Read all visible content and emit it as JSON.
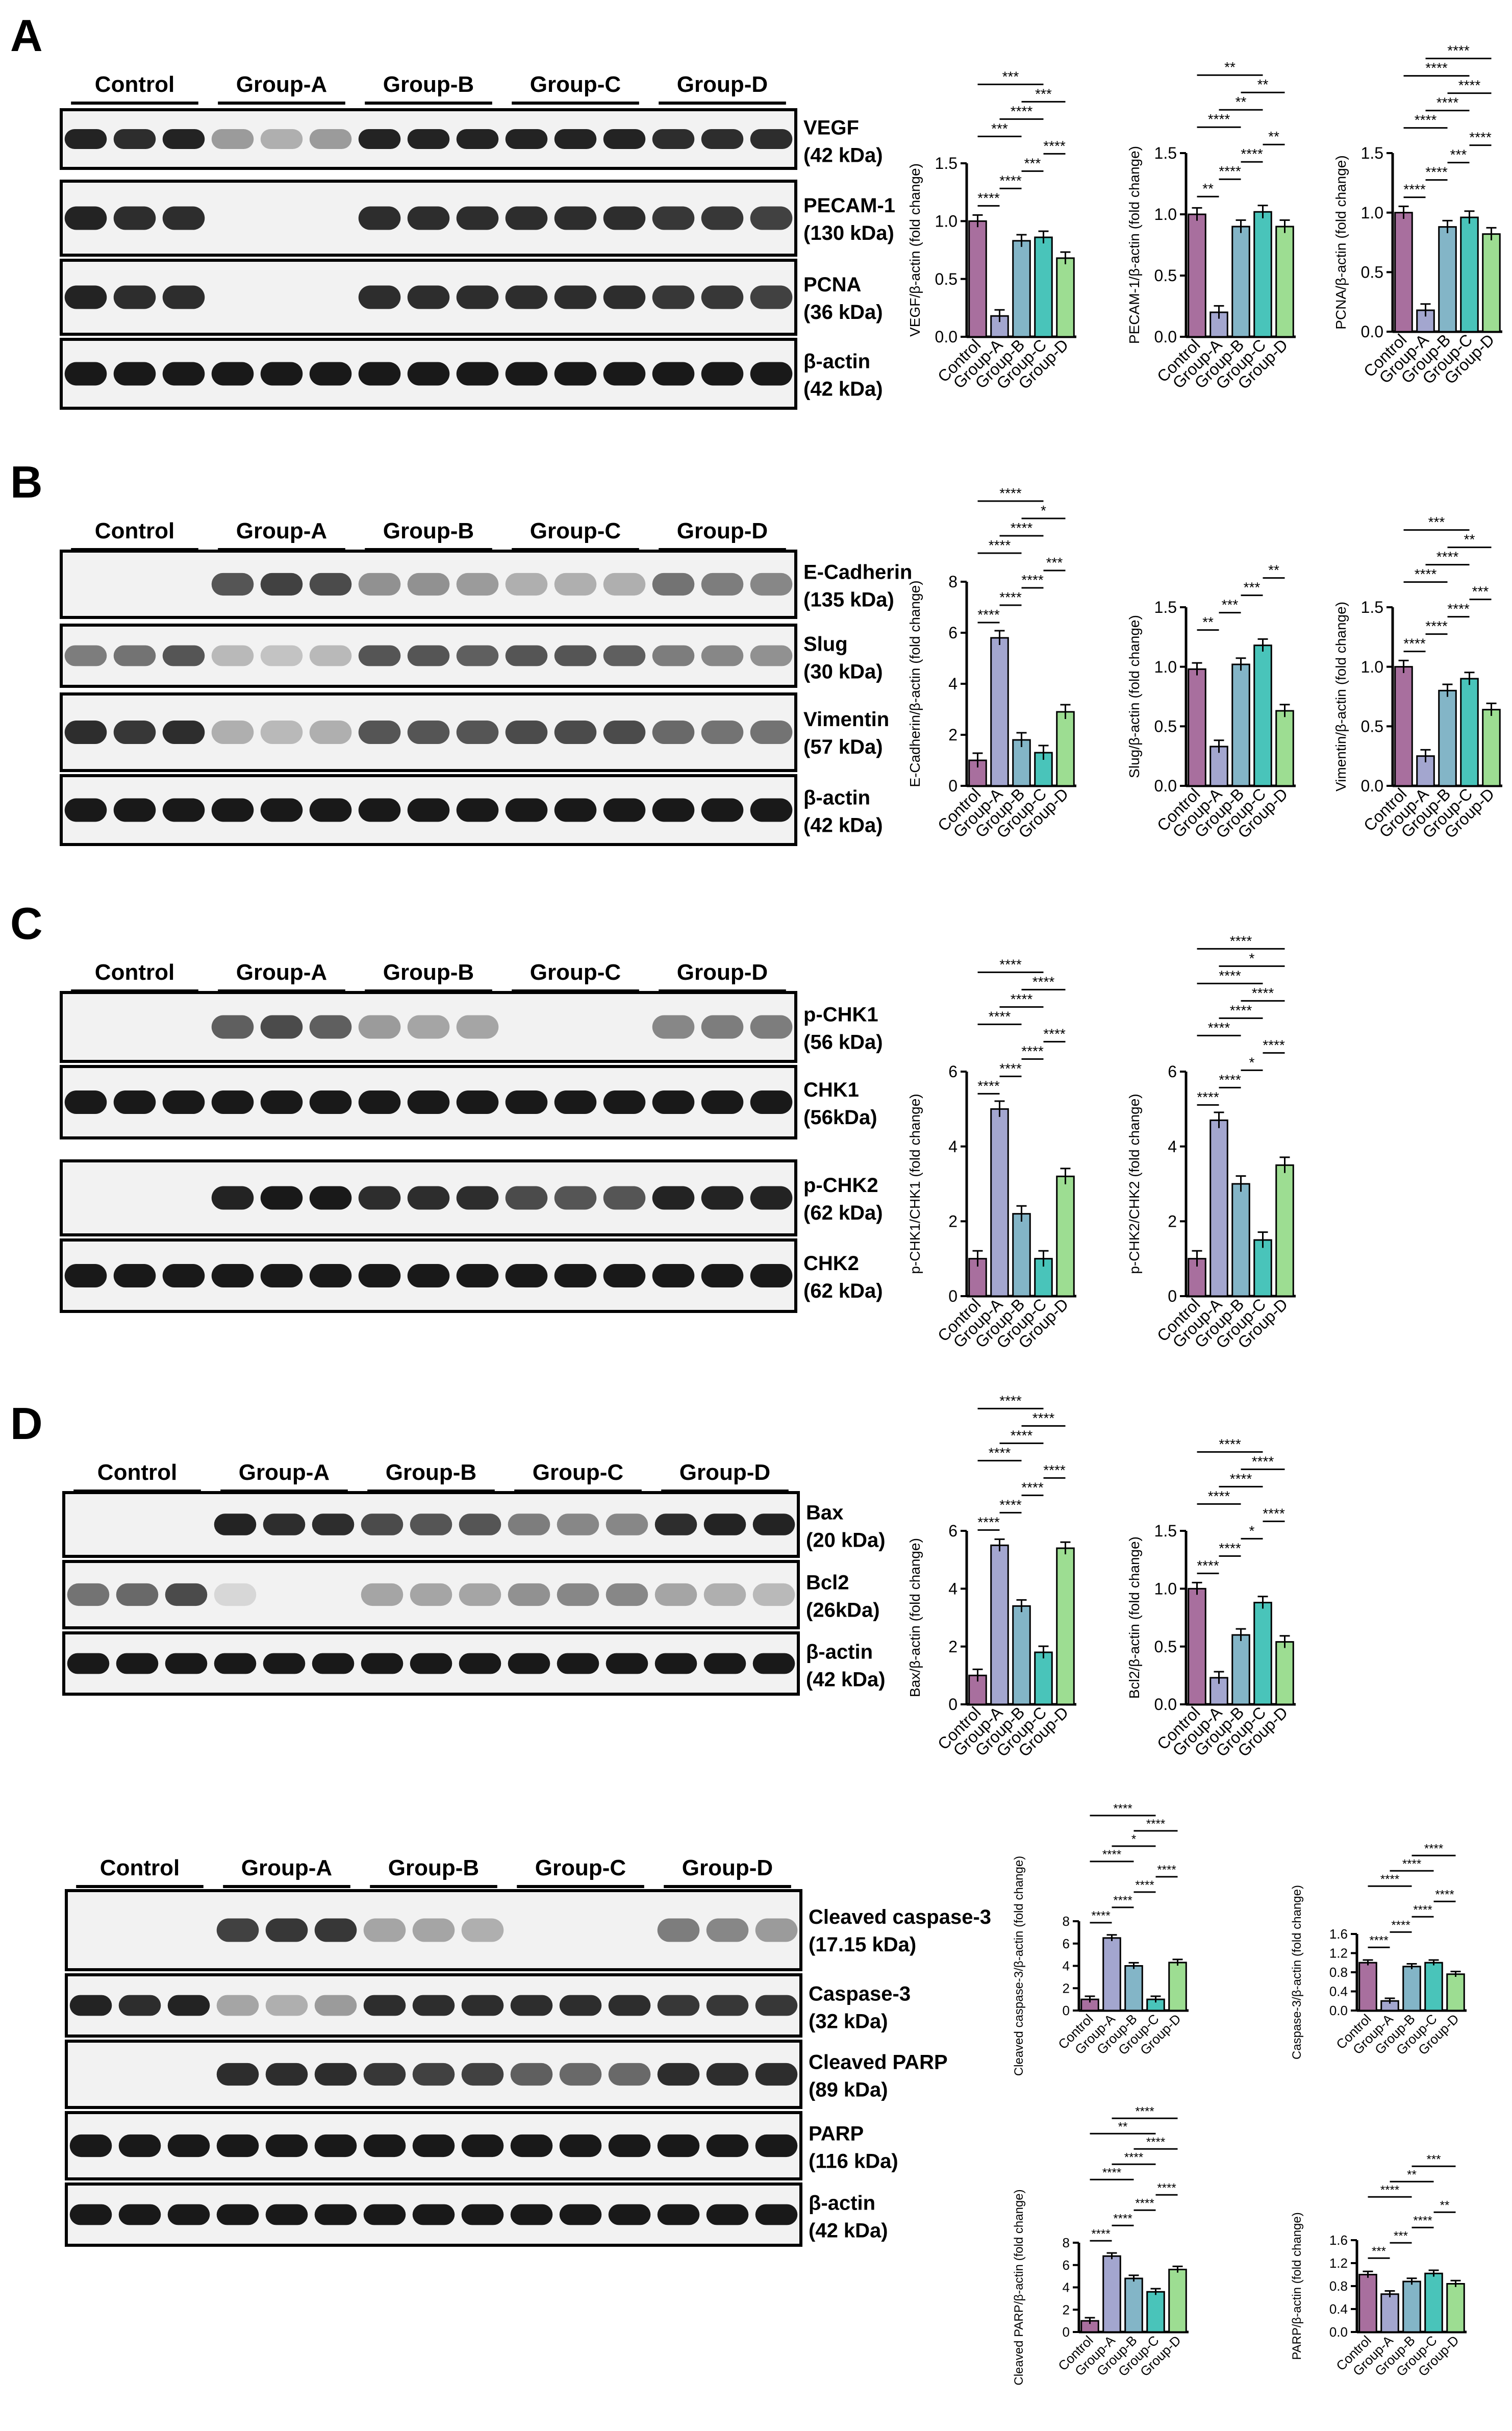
{
  "groups": [
    "Control",
    "Group-A",
    "Group-B",
    "Group-C",
    "Group-D"
  ],
  "colors": {
    "Control": "#a86f9e",
    "Group-A": "#a3a6cf",
    "Group-B": "#83b5c7",
    "Group-C": "#49c4ba",
    "Group-D": "#9ddd92"
  },
  "panels": [
    {
      "letter": "A",
      "blots": [
        {
          "protein": "VEGF",
          "kda": "(42 kDa)",
          "pattern": "vegf"
        },
        {
          "protein": "PECAM-1",
          "kda": "(130 kDa)",
          "pattern": "pecam"
        },
        {
          "protein": "PCNA",
          "kda": "(36 kDa)",
          "pattern": "pecam"
        },
        {
          "protein": "β-actin",
          "kda": "(42 kDa)",
          "pattern": "even"
        }
      ]
    },
    {
      "letter": "B",
      "blots": [
        {
          "protein": "E-Cadherin",
          "kda": "(135 kDa)",
          "pattern": "ecad"
        },
        {
          "protein": "Slug",
          "kda": "(30 kDa)",
          "pattern": "slug"
        },
        {
          "protein": "Vimentin",
          "kda": "(57 kDa)",
          "pattern": "vim"
        },
        {
          "protein": "β-actin",
          "kda": "(42 kDa)",
          "pattern": "even"
        }
      ]
    },
    {
      "letter": "C",
      "blots": [
        {
          "protein": "p-CHK1",
          "kda": "(56 kDa)",
          "pattern": "pchk1"
        },
        {
          "protein": "CHK1",
          "kda": "(56kDa)",
          "pattern": "even"
        },
        {
          "protein": "p-CHK2",
          "kda": "(62 kDa)",
          "pattern": "pchk2"
        },
        {
          "protein": "CHK2",
          "kda": "(62 kDa)",
          "pattern": "even"
        }
      ]
    },
    {
      "letter": "D",
      "blots": [
        {
          "protein": "Bax",
          "kda": "(20 kDa)",
          "pattern": "bax"
        },
        {
          "protein": "Bcl2",
          "kda": "(26kDa)",
          "pattern": "bcl2"
        },
        {
          "protein": "β-actin",
          "kda": "(42 kDa)",
          "pattern": "even"
        }
      ]
    },
    {
      "letter": "",
      "blots": [
        {
          "protein": "Cleaved caspase-3",
          "kda": "(17.15 kDa)",
          "pattern": "ccasp"
        },
        {
          "protein": "Caspase-3",
          "kda": "(32 kDa)",
          "pattern": "casp"
        },
        {
          "protein": "Cleaved PARP",
          "kda": "(89 kDa)",
          "pattern": "cparp"
        },
        {
          "protein": "PARP",
          "kda": "(116 kDa)",
          "pattern": "even"
        },
        {
          "protein": "β-actin",
          "kda": "(42 kDa)",
          "pattern": "even"
        }
      ]
    }
  ],
  "chart_data": [
    {
      "type": "bar",
      "ylabel": "VEGF/β-actin (fold change)",
      "ylim": [
        0,
        1.5
      ],
      "yticks": [
        "0.0",
        "0.5",
        "1.0",
        "1.5"
      ],
      "categories": [
        "Control",
        "Group-A",
        "Group-B",
        "Group-C",
        "Group-D"
      ],
      "values": [
        1.0,
        0.18,
        0.83,
        0.86,
        0.68
      ],
      "sig": [
        "****",
        "****",
        "***",
        "****",
        "***",
        "****",
        "***",
        "***"
      ]
    },
    {
      "type": "bar",
      "ylabel": "PECAM-1/β-actin (fold change)",
      "ylim": [
        0,
        1.5
      ],
      "yticks": [
        "0.0",
        "0.5",
        "1.0",
        "1.5"
      ],
      "categories": [
        "Control",
        "Group-A",
        "Group-B",
        "Group-C",
        "Group-D"
      ],
      "values": [
        1.0,
        0.2,
        0.9,
        1.02,
        0.9
      ],
      "sig": [
        "**",
        "****",
        "****",
        "**",
        "****",
        "**",
        "**",
        "**"
      ]
    },
    {
      "type": "bar",
      "ylabel": "PCNA/β-actin (fold change)",
      "ylim": [
        0,
        1.5
      ],
      "yticks": [
        "0.0",
        "0.5",
        "1.0",
        "1.5"
      ],
      "categories": [
        "Control",
        "Group-A",
        "Group-B",
        "Group-C",
        "Group-D"
      ],
      "values": [
        1.0,
        0.18,
        0.88,
        0.96,
        0.82
      ],
      "sig": [
        "****",
        "****",
        "***",
        "****",
        "****",
        "****",
        "****",
        "****",
        "****"
      ]
    },
    {
      "type": "bar",
      "ylabel": "E-Cadherin/β-actin (fold change)",
      "ylim": [
        0,
        8
      ],
      "yticks": [
        "0",
        "2",
        "4",
        "6",
        "8"
      ],
      "categories": [
        "Control",
        "Group-A",
        "Group-B",
        "Group-C",
        "Group-D"
      ],
      "values": [
        1.0,
        5.8,
        1.8,
        1.3,
        2.9
      ],
      "sig": [
        "****",
        "****",
        "****",
        "***",
        "****",
        "****",
        "*",
        "****"
      ]
    },
    {
      "type": "bar",
      "ylabel": "Slug/β-actin (fold change)",
      "ylim": [
        0,
        1.5
      ],
      "yticks": [
        "0.0",
        "0.5",
        "1.0",
        "1.5"
      ],
      "categories": [
        "Control",
        "Group-A",
        "Group-B",
        "Group-C",
        "Group-D"
      ],
      "values": [
        0.98,
        0.33,
        1.02,
        1.18,
        0.63
      ],
      "sig": [
        "**",
        "***",
        "***",
        "**"
      ]
    },
    {
      "type": "bar",
      "ylabel": "Vimentin/β-actin (fold change)",
      "ylim": [
        0,
        1.5
      ],
      "yticks": [
        "0.0",
        "0.5",
        "1.0",
        "1.5"
      ],
      "categories": [
        "Control",
        "Group-A",
        "Group-B",
        "Group-C",
        "Group-D"
      ],
      "values": [
        1.0,
        0.25,
        0.8,
        0.9,
        0.64
      ],
      "sig": [
        "****",
        "****",
        "****",
        "***",
        "****",
        "****",
        "**",
        "***"
      ]
    },
    {
      "type": "bar",
      "ylabel": "p-CHK1/CHK1 (fold change)",
      "ylim": [
        0,
        6
      ],
      "yticks": [
        "0",
        "2",
        "4",
        "6"
      ],
      "categories": [
        "Control",
        "Group-A",
        "Group-B",
        "Group-C",
        "Group-D"
      ],
      "values": [
        1.0,
        5.0,
        2.2,
        1.0,
        3.2
      ],
      "sig": [
        "****",
        "****",
        "****",
        "****",
        "****",
        "****",
        "****",
        "****"
      ]
    },
    {
      "type": "bar",
      "ylabel": "p-CHK2/CHK2 (fold change)",
      "ylim": [
        0,
        6
      ],
      "yticks": [
        "0",
        "2",
        "4",
        "6"
      ],
      "categories": [
        "Control",
        "Group-A",
        "Group-B",
        "Group-C",
        "Group-D"
      ],
      "values": [
        1.0,
        4.7,
        3.0,
        1.5,
        3.5
      ],
      "sig": [
        "****",
        "****",
        "*",
        "****",
        "****",
        "****",
        "****",
        "****",
        "*",
        "****"
      ]
    },
    {
      "type": "bar",
      "ylabel": "Bax/β-actin (fold change)",
      "ylim": [
        0,
        6
      ],
      "yticks": [
        "0",
        "2",
        "4",
        "6"
      ],
      "categories": [
        "Control",
        "Group-A",
        "Group-B",
        "Group-C",
        "Group-D"
      ],
      "values": [
        1.0,
        5.5,
        3.4,
        1.8,
        5.4
      ],
      "sig": [
        "****",
        "****",
        "****",
        "****",
        "****",
        "****",
        "****",
        "****"
      ]
    },
    {
      "type": "bar",
      "ylabel": "Bcl2/β-actin (fold change)",
      "ylim": [
        0,
        1.5
      ],
      "yticks": [
        "0.0",
        "0.5",
        "1.0",
        "1.5"
      ],
      "categories": [
        "Control",
        "Group-A",
        "Group-B",
        "Group-C",
        "Group-D"
      ],
      "values": [
        1.0,
        0.23,
        0.6,
        0.88,
        0.54
      ],
      "sig": [
        "****",
        "****",
        "*",
        "****",
        "****",
        "****",
        "****",
        "****"
      ]
    },
    {
      "type": "bar",
      "ylabel": "Cleaved caspase-3/β-actin (fold change)",
      "ylim": [
        0,
        8
      ],
      "yticks": [
        "0",
        "2",
        "4",
        "6",
        "8"
      ],
      "categories": [
        "Control",
        "Group-A",
        "Group-B",
        "Group-C",
        "Group-D"
      ],
      "values": [
        1.0,
        6.5,
        4.0,
        1.0,
        4.3
      ],
      "sig": [
        "****",
        "****",
        "****",
        "****",
        "****",
        "*",
        "****",
        "****"
      ]
    },
    {
      "type": "bar",
      "ylabel": "Caspase-3/β-actin (fold change)",
      "ylim": [
        0,
        1.6
      ],
      "yticks": [
        "0.0",
        "0.4",
        "0.8",
        "1.2",
        "1.6"
      ],
      "categories": [
        "Control",
        "Group-A",
        "Group-B",
        "Group-C",
        "Group-D"
      ],
      "values": [
        1.0,
        0.2,
        0.92,
        1.0,
        0.76
      ],
      "sig": [
        "****",
        "****",
        "****",
        "****",
        "****",
        "****",
        "****"
      ]
    },
    {
      "type": "bar",
      "ylabel": "Cleaved PARP/β-actin (fold change)",
      "ylim": [
        0,
        8
      ],
      "yticks": [
        "0",
        "2",
        "4",
        "6",
        "8"
      ],
      "categories": [
        "Control",
        "Group-A",
        "Group-B",
        "Group-C",
        "Group-D"
      ],
      "values": [
        1.0,
        6.8,
        4.8,
        3.6,
        5.6
      ],
      "sig": [
        "****",
        "****",
        "****",
        "****",
        "****",
        "****",
        "****",
        "**",
        "****"
      ]
    },
    {
      "type": "bar",
      "ylabel": "PARP/β-actin (fold change)",
      "ylim": [
        0,
        1.6
      ],
      "yticks": [
        "0.0",
        "0.4",
        "0.8",
        "1.2",
        "1.6"
      ],
      "categories": [
        "Control",
        "Group-A",
        "Group-B",
        "Group-C",
        "Group-D"
      ],
      "values": [
        1.0,
        0.66,
        0.88,
        1.02,
        0.84
      ],
      "sig": [
        "***",
        "***",
        "****",
        "**",
        "****",
        "**",
        "***"
      ]
    }
  ]
}
